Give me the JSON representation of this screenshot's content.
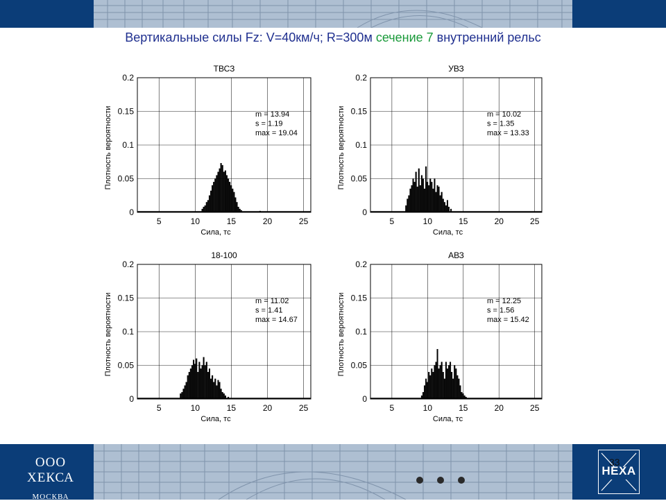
{
  "slide": {
    "title_part1": "Вертикальные силы  Fz:  V=40км/ч; R=300м ",
    "title_highlight": "сечение 7",
    "title_part2": " внутренний рельс",
    "highlight_color": "#1a9a3a",
    "title_color": "#1f2f8f",
    "band_color": "#0b3d78"
  },
  "footer": {
    "company_name": "ООО ХЕКСА",
    "company_city": "МОСКВА",
    "logo_text": "HEXA",
    "page_number": "33"
  },
  "chart_data": [
    {
      "type": "bar",
      "title": "ТВСЗ",
      "xlabel": "Сила, тс",
      "ylabel": "Плотность вероятности",
      "xlim": [
        2,
        26
      ],
      "ylim": [
        0,
        0.2
      ],
      "xticks": [
        5,
        10,
        15,
        20,
        25
      ],
      "yticks": [
        "0",
        "0.05",
        "0.1",
        "0.15",
        "0.2"
      ],
      "grid": true,
      "stats": [
        "m = 13.94",
        "s  = 1.19",
        "max  = 19.04"
      ],
      "x": [
        11.0,
        11.2,
        11.4,
        11.6,
        11.8,
        12.0,
        12.2,
        12.4,
        12.6,
        12.8,
        13.0,
        13.2,
        13.4,
        13.6,
        13.8,
        14.0,
        14.2,
        14.4,
        14.6,
        14.8,
        15.0,
        15.2,
        15.4,
        15.6,
        15.8,
        16.0,
        16.2,
        16.4,
        19.0
      ],
      "values": [
        0.005,
        0.008,
        0.01,
        0.015,
        0.018,
        0.025,
        0.032,
        0.04,
        0.045,
        0.05,
        0.055,
        0.06,
        0.065,
        0.073,
        0.07,
        0.06,
        0.062,
        0.055,
        0.05,
        0.045,
        0.04,
        0.035,
        0.03,
        0.022,
        0.015,
        0.008,
        0.005,
        0.003,
        0.002
      ]
    },
    {
      "type": "bar",
      "title": "УВЗ",
      "xlabel": "Сила, тс",
      "ylabel": "Плотность вероятности",
      "xlim": [
        2,
        26
      ],
      "ylim": [
        0,
        0.2
      ],
      "xticks": [
        5,
        10,
        15,
        20,
        25
      ],
      "yticks": [
        "0",
        "0.05",
        "0.1",
        "0.15",
        "0.2"
      ],
      "grid": true,
      "stats": [
        "m = 10.02",
        "s  = 1.35",
        "max  = 13.33"
      ],
      "x": [
        7.0,
        7.2,
        7.4,
        7.6,
        7.8,
        8.0,
        8.2,
        8.4,
        8.6,
        8.8,
        9.0,
        9.2,
        9.4,
        9.6,
        9.8,
        10.0,
        10.2,
        10.4,
        10.6,
        10.8,
        11.0,
        11.2,
        11.4,
        11.6,
        11.8,
        12.0,
        12.2,
        12.4,
        12.6,
        12.8,
        13.0,
        13.3
      ],
      "values": [
        0.01,
        0.02,
        0.025,
        0.035,
        0.04,
        0.05,
        0.045,
        0.06,
        0.038,
        0.065,
        0.04,
        0.055,
        0.05,
        0.035,
        0.068,
        0.045,
        0.04,
        0.05,
        0.045,
        0.035,
        0.05,
        0.03,
        0.04,
        0.038,
        0.025,
        0.03,
        0.02,
        0.015,
        0.01,
        0.018,
        0.008,
        0.005
      ]
    },
    {
      "type": "bar",
      "title": "18-100",
      "xlabel": "Сила, тс",
      "ylabel": "Плотность вероятности",
      "xlim": [
        2,
        26
      ],
      "ylim": [
        0,
        0.2
      ],
      "xticks": [
        5,
        10,
        15,
        20,
        25
      ],
      "yticks": [
        "0",
        "0.05",
        "0.1",
        "0.15",
        "0.2"
      ],
      "grid": true,
      "stats": [
        "m = 11.02",
        "s  = 1.41",
        "max  = 14.67"
      ],
      "x": [
        8.0,
        8.2,
        8.4,
        8.6,
        8.8,
        9.0,
        9.2,
        9.4,
        9.6,
        9.8,
        10.0,
        10.2,
        10.4,
        10.6,
        10.8,
        11.0,
        11.2,
        11.4,
        11.6,
        11.8,
        12.0,
        12.2,
        12.4,
        12.6,
        12.8,
        13.0,
        13.2,
        13.4,
        13.6,
        13.8,
        14.0,
        14.2,
        14.6
      ],
      "values": [
        0.008,
        0.01,
        0.015,
        0.02,
        0.025,
        0.035,
        0.04,
        0.045,
        0.05,
        0.058,
        0.052,
        0.06,
        0.04,
        0.055,
        0.045,
        0.05,
        0.062,
        0.05,
        0.055,
        0.04,
        0.045,
        0.03,
        0.035,
        0.025,
        0.03,
        0.02,
        0.028,
        0.025,
        0.015,
        0.01,
        0.008,
        0.005,
        0.003
      ]
    },
    {
      "type": "bar",
      "title": "АВЗ",
      "xlabel": "Сила, тс",
      "ylabel": "Плотность вероятности",
      "xlim": [
        2,
        26
      ],
      "ylim": [
        0,
        0.2
      ],
      "xticks": [
        5,
        10,
        15,
        20,
        25
      ],
      "yticks": [
        "0",
        "0.05",
        "0.1",
        "0.15",
        "0.2"
      ],
      "grid": true,
      "stats": [
        "m = 12.25",
        "s  = 1.56",
        "max  = 15.42"
      ],
      "x": [
        9.2,
        9.4,
        9.6,
        9.8,
        10.0,
        10.2,
        10.4,
        10.6,
        10.8,
        11.0,
        11.2,
        11.4,
        11.6,
        11.8,
        12.0,
        12.2,
        12.4,
        12.6,
        12.8,
        13.0,
        13.2,
        13.4,
        13.6,
        13.8,
        14.0,
        14.2,
        14.4,
        14.6,
        14.8,
        15.0,
        15.2,
        15.4
      ],
      "values": [
        0.005,
        0.01,
        0.02,
        0.03,
        0.025,
        0.04,
        0.035,
        0.045,
        0.04,
        0.05,
        0.055,
        0.074,
        0.045,
        0.05,
        0.055,
        0.04,
        0.03,
        0.055,
        0.045,
        0.05,
        0.055,
        0.04,
        0.03,
        0.05,
        0.045,
        0.035,
        0.03,
        0.02,
        0.01,
        0.008,
        0.005,
        0.003
      ]
    }
  ]
}
